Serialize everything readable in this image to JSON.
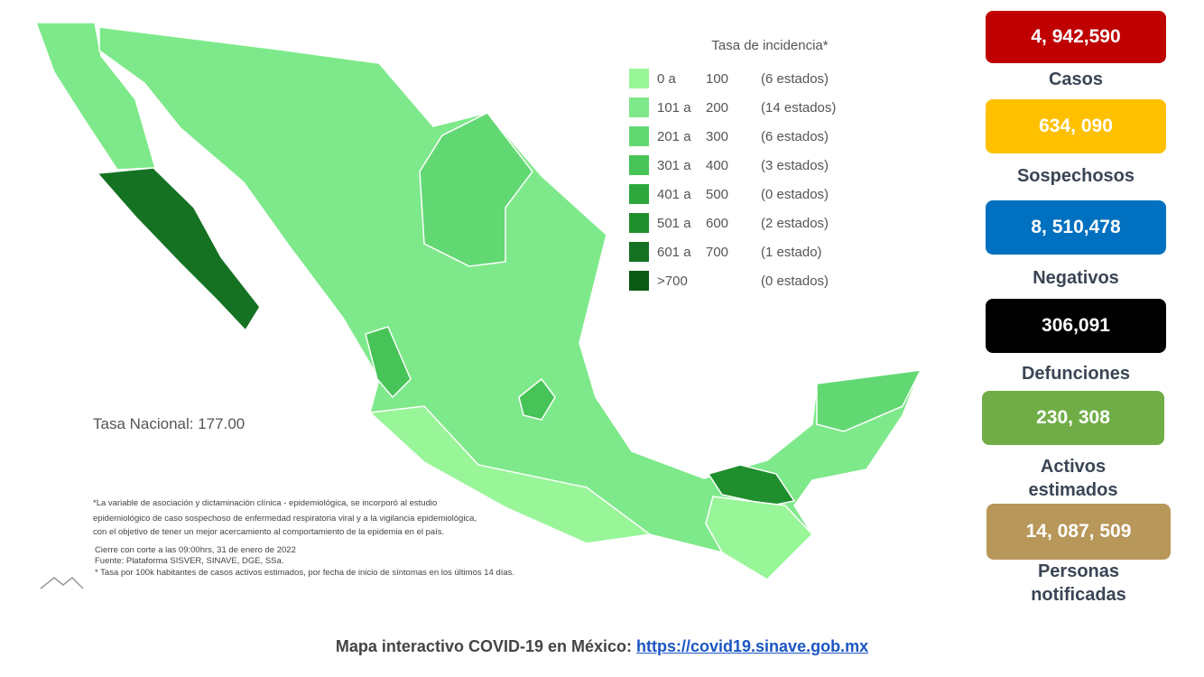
{
  "legend": {
    "title": "Tasa de incidencia*",
    "items": [
      {
        "from": "0 a",
        "to": "100",
        "count": "(6 estados)",
        "color": "#98f598"
      },
      {
        "from": "101 a",
        "to": "200",
        "count": "(14 estados)",
        "color": "#7ee98a"
      },
      {
        "from": "201 a",
        "to": "300",
        "count": "(6 estados)",
        "color": "#62d873"
      },
      {
        "from": "301 a",
        "to": "400",
        "count": "(3 estados)",
        "color": "#46c457"
      },
      {
        "from": "401 a",
        "to": "500",
        "count": "(0 estados)",
        "color": "#2ea83d"
      },
      {
        "from": "501 a",
        "to": "600",
        "count": "(2 estados)",
        "color": "#1f8e2d"
      },
      {
        "from": "601 a",
        "to": "700",
        "count": "(1 estado)",
        "color": "#147222"
      },
      {
        "from": ">700",
        "count": "(0 estados)",
        "color": "#0b5a16"
      }
    ]
  },
  "national_rate": "Tasa Nacional: 177.00",
  "notes": [
    "*La variable de asociación y dictaminación clínica - epidemiológica, se incorporó al estudio",
    "epidemiológico de caso sospechoso de enfermedad respiratoria viral y a la vigilancia epidemiológica,",
    "con el objetivo de tener un mejor acercamiento al comportamiento de la epidemia en el país.",
    "Cierre con corte a las 09:00hrs, 31 de enero de 2022",
    "Fuente: Plataforma SISVER, SINAVE, DGE, SSa.",
    "* Tasa por 100k habitantes de casos activos estimados, por fecha de inicio de síntomas en los últimos 14 días."
  ],
  "stats": [
    {
      "value": "4, 942,590",
      "label": "Casos",
      "color": "#c00000"
    },
    {
      "value": "634, 090",
      "label": "Sospechosos",
      "color": "#ffc000"
    },
    {
      "value": "8, 510,478",
      "label": "Negativos",
      "color": "#0070c0"
    },
    {
      "value": "306,091",
      "label": "Defunciones",
      "color": "#000000"
    },
    {
      "value": "230, 308",
      "label": "Activos estimados",
      "color": "#70ad47"
    },
    {
      "value": "14, 087, 509",
      "label": "Personas notificadas",
      "color": "#b8975a"
    }
  ],
  "footer": {
    "text": "Mapa interactivo COVID-19 en México:",
    "link": "https://covid19.sinave.gob.mx"
  }
}
